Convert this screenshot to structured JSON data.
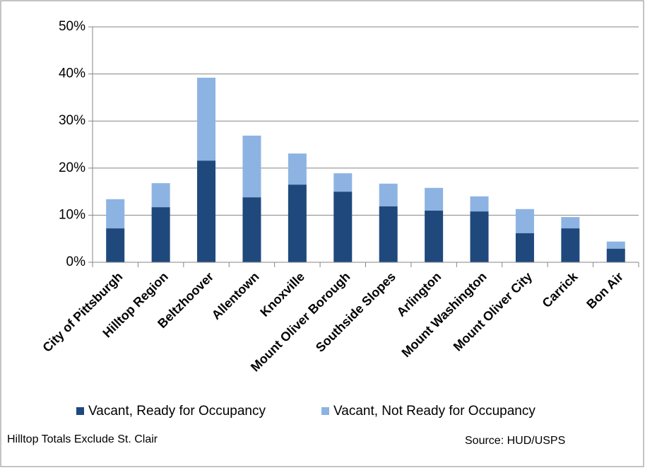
{
  "chart_data": {
    "type": "stacked_bar",
    "categories": [
      "City of Pittsburgh",
      "Hilltop Region",
      "Beltzhoover",
      "Allentown",
      "Knoxville",
      "Mount Oliver Borough",
      "Southside Slopes",
      "Arlington",
      "Mount Washington",
      "Mount Oliver City",
      "Carrick",
      "Bon Air"
    ],
    "series": [
      {
        "name": "Vacant, Ready for Occupancy",
        "color": "#1f497d",
        "values": [
          7.2,
          11.7,
          21.6,
          13.8,
          16.5,
          15.0,
          11.9,
          11.0,
          10.8,
          6.2,
          7.2,
          2.9
        ]
      },
      {
        "name": "Vacant, Not Ready for Occupancy",
        "color": "#8db3e2",
        "values": [
          6.2,
          5.1,
          17.6,
          13.1,
          6.6,
          3.9,
          4.8,
          4.8,
          3.2,
          5.1,
          2.4,
          1.5
        ]
      }
    ],
    "ylim": [
      0,
      50
    ],
    "yticks": [
      {
        "value": 0,
        "label": "0%"
      },
      {
        "value": 10,
        "label": "10%"
      },
      {
        "value": 20,
        "label": "20%"
      },
      {
        "value": 30,
        "label": "30%"
      },
      {
        "value": 40,
        "label": "40%"
      },
      {
        "value": 50,
        "label": "50%"
      }
    ],
    "grid": true,
    "legend": "bottom",
    "annotations": [
      "Hilltop Totals Exclude St. Clair",
      "Source: HUD/USPS"
    ]
  }
}
